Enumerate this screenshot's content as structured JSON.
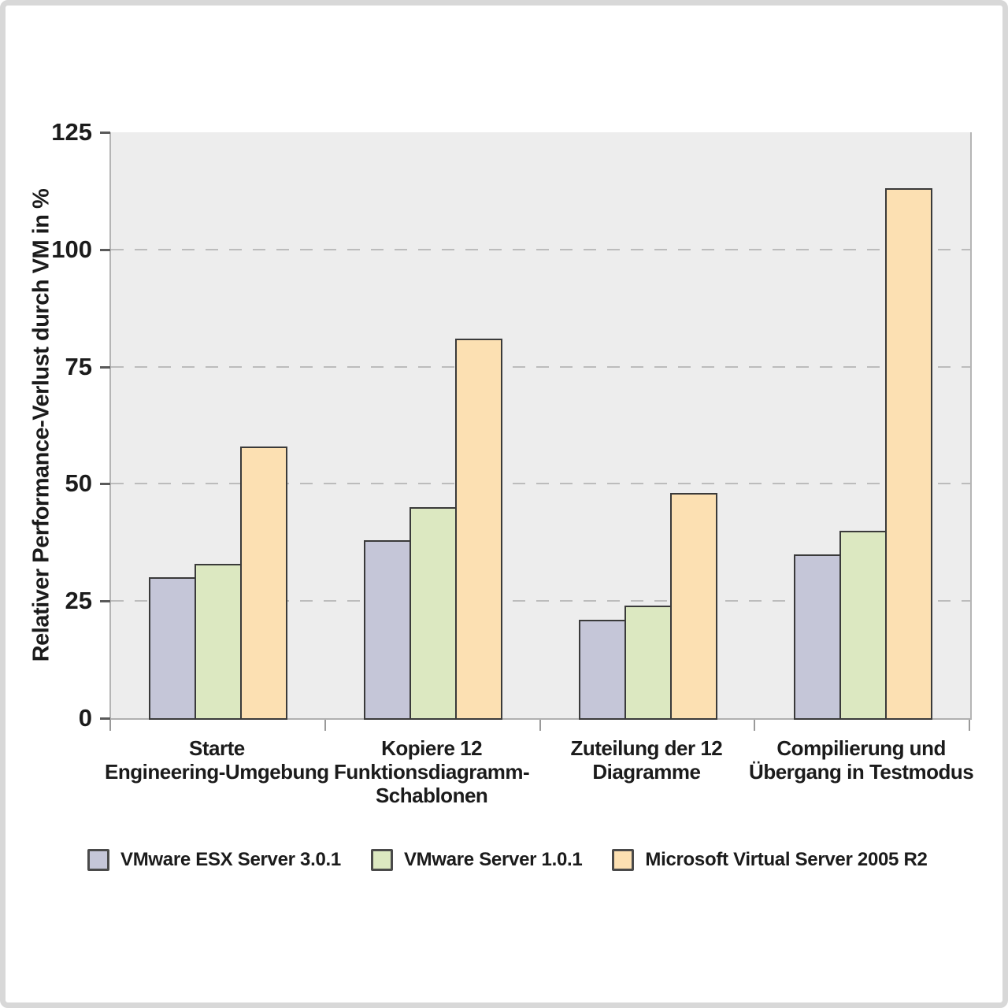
{
  "chart_data": {
    "type": "bar",
    "title": "",
    "xlabel": "",
    "ylabel": "Relativer Performance-Verlust durch VM in %",
    "ylim": [
      0,
      125
    ],
    "yticks": [
      0,
      25,
      50,
      75,
      100,
      125
    ],
    "gridlines_at": [
      25,
      50,
      75,
      100
    ],
    "grid_style": "dashed horizontal",
    "legend_position": "bottom",
    "categories": [
      "Starte Engineering-Umgebung",
      "Kopiere 12 Funktionsdiagramm-Schablonen",
      "Zuteilung der 12 Diagramme",
      "Compilierung und Übergang in Testmodus"
    ],
    "category_label_lines": [
      [
        "Starte",
        "Engineering-Umgebung"
      ],
      [
        "Kopiere 12",
        "Funktionsdiagramm-",
        "Schablonen"
      ],
      [
        "Zuteilung der 12",
        "Diagramme"
      ],
      [
        "Compilierung und",
        "Übergang in Testmodus"
      ]
    ],
    "series": [
      {
        "name": "VMware ESX Server 3.0.1",
        "color": "#c5c6d8",
        "values": [
          30,
          38,
          21,
          35
        ]
      },
      {
        "name": "VMware Server 1.0.1",
        "color": "#dce8c1",
        "values": [
          33,
          45,
          24,
          40
        ]
      },
      {
        "name": "Microsoft Virtual Server 2005 R2",
        "color": "#fce0b2",
        "values": [
          58,
          81,
          48,
          113
        ]
      }
    ]
  },
  "colors": {
    "plot_background": "#ededed",
    "gridline": "#bcbcbc",
    "axis_line": "#b5b5b5",
    "bar_border": "#3a3a3a",
    "text": "#1b1b1b",
    "outer_frame": "#d8d8d8"
  }
}
